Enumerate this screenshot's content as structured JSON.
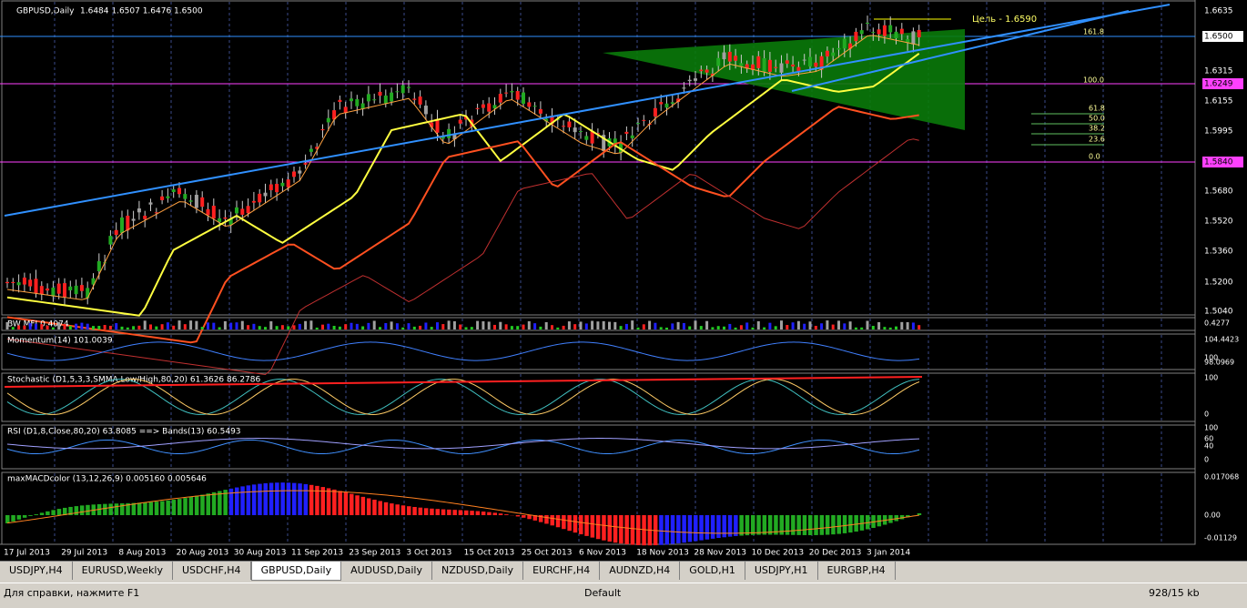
{
  "header": {
    "symbol": "GBPUSD,Daily",
    "ohlc": "1.6484 1.6507 1.6476 1.6500"
  },
  "target": "Цель - 1.6590",
  "price_axis": [
    "1.6635",
    "1.6500",
    "1.6315",
    "1.6249",
    "1.6155",
    "1.5995",
    "1.5840",
    "1.5680",
    "1.5520",
    "1.5360",
    "1.5200",
    "1.5040"
  ],
  "fib_levels": [
    "161.8",
    "100.0",
    "61.8",
    "50.0",
    "38.2",
    "23.6",
    "0.0"
  ],
  "dates": [
    "17 Jul 2013",
    "29 Jul 2013",
    "8 Aug 2013",
    "20 Aug 2013",
    "30 Aug 2013",
    "11 Sep 2013",
    "23 Sep 2013",
    "3 Oct 2013",
    "15 Oct 2013",
    "25 Oct 2013",
    "6 Nov 2013",
    "18 Nov 2013",
    "28 Nov 2013",
    "10 Dec 2013",
    "20 Dec 2013",
    "3 Jan 2014"
  ],
  "indicators": [
    {
      "label": "BW MFI 0.4074",
      "axis": [
        "0.4277"
      ]
    },
    {
      "label": "Momentum(14) 101.0039",
      "axis": [
        "104.4423",
        "100",
        "98.0969"
      ]
    },
    {
      "label": "Stochastic (D1,5,3,3,SMMA,Low/High,80,20) 61.3626 86.2786",
      "axis": [
        "100",
        "0"
      ]
    },
    {
      "label": "RSI (D1,8,Close,80,20) 63.8085 ==> Bands(13) 60.5493",
      "axis": [
        "100",
        "60",
        "40",
        "0"
      ]
    },
    {
      "label": "maxMACDcolor (13,12,26,9) 0.005160 0.005646",
      "axis": [
        "0.017068",
        "0.00",
        "-0.01129"
      ]
    }
  ],
  "tabs": [
    "USDJPY,H4",
    "EURUSD,Weekly",
    "USDCHF,H4",
    "GBPUSD,Daily",
    "AUDUSD,Daily",
    "NZDUSD,Daily",
    "EURCHF,H4",
    "AUDNZD,H4",
    "GOLD,H1",
    "USDJPY,H1",
    "EURGBP,H4"
  ],
  "status": {
    "help": "Для справки, нажмите F1",
    "profile": "Default",
    "traffic": "928/15 kb"
  }
}
